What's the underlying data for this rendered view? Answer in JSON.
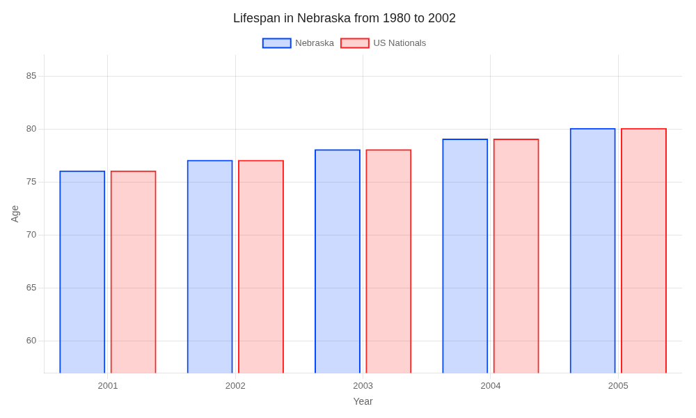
{
  "chart_data": {
    "type": "bar",
    "title": "Lifespan in Nebraska from 1980 to 2002",
    "xlabel": "Year",
    "ylabel": "Age",
    "categories": [
      "2001",
      "2002",
      "2003",
      "2004",
      "2005"
    ],
    "series": [
      {
        "name": "Nebraska",
        "color": "#0044ff",
        "values": [
          76.1,
          77.1,
          78.1,
          79.1,
          80.1
        ]
      },
      {
        "name": "US Nationals",
        "color": "#ff2020",
        "values": [
          76.1,
          77.1,
          78.1,
          79.1,
          80.1
        ]
      }
    ],
    "ylim": [
      57,
      87
    ],
    "yticks": [
      60,
      65,
      70,
      75,
      80,
      85
    ],
    "grid": true,
    "legend": "top"
  }
}
